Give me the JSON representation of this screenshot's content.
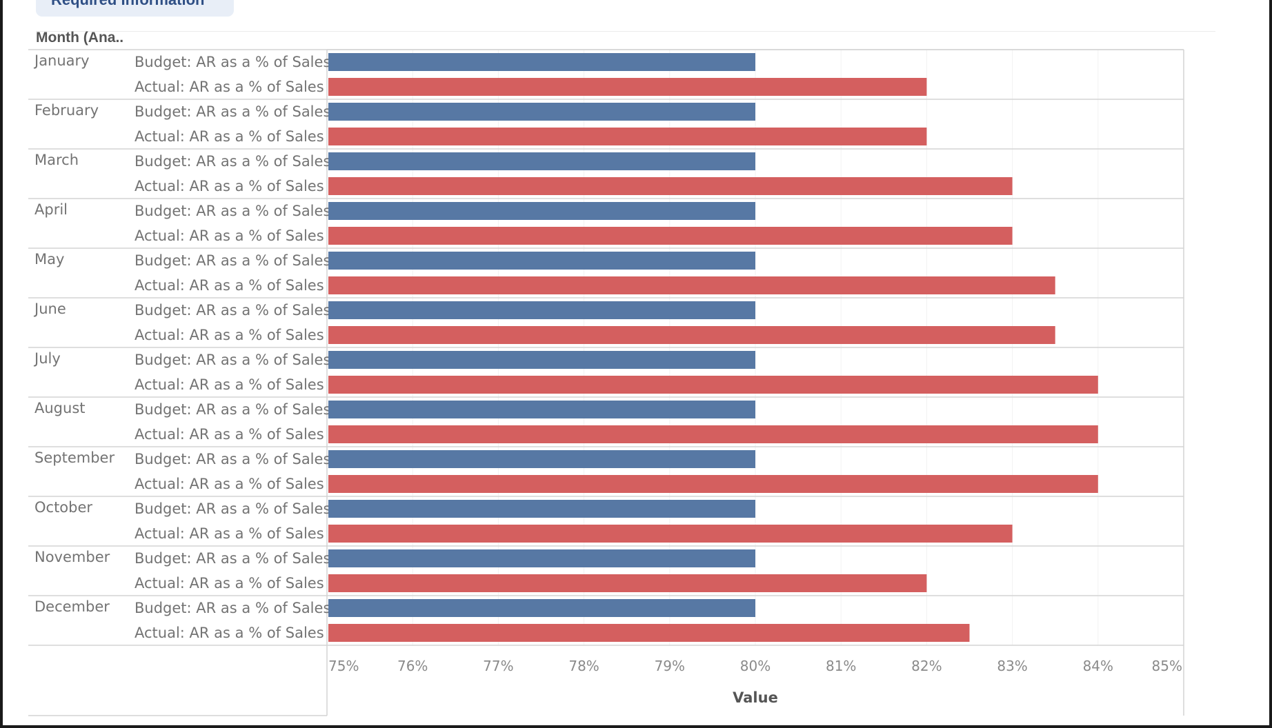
{
  "top_tab": {
    "label": "Required Information"
  },
  "header": {
    "row_header": "Month (Ana.."
  },
  "chart_data": {
    "type": "bar",
    "orientation": "horizontal",
    "categories": [
      "January",
      "February",
      "March",
      "April",
      "May",
      "June",
      "July",
      "August",
      "September",
      "October",
      "November",
      "December"
    ],
    "series": [
      {
        "name": "Budget: AR as a % of Sales",
        "color": "#5778a4",
        "values": [
          80,
          80,
          80,
          80,
          80,
          80,
          80,
          80,
          80,
          80,
          80,
          80
        ]
      },
      {
        "name": "Actual: AR as a % of Sales",
        "color": "#d45f5f",
        "values": [
          82,
          82,
          83,
          83,
          83.5,
          83.5,
          84,
          84,
          84,
          83,
          82,
          82.5
        ]
      }
    ],
    "xlabel": "Value",
    "xlim": [
      75,
      85
    ],
    "xticks": [
      "75%",
      "76%",
      "77%",
      "78%",
      "79%",
      "80%",
      "81%",
      "82%",
      "83%",
      "84%",
      "85%"
    ],
    "grid": "vertical"
  }
}
